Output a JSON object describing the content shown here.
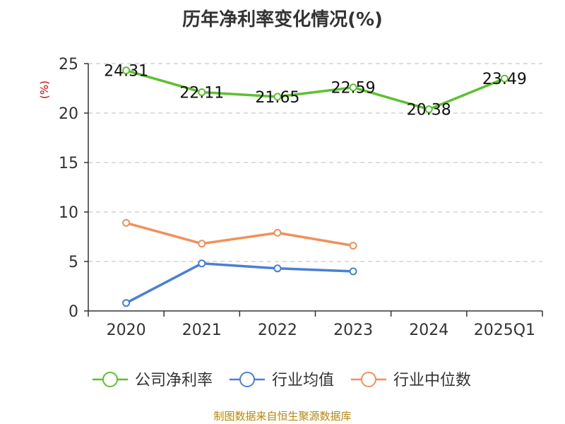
{
  "chart_data": {
    "type": "line",
    "title": "历年净利率变化情况(%)",
    "y_unit": "(%)",
    "categories": [
      "2020",
      "2021",
      "2022",
      "2023",
      "2024",
      "2025Q1"
    ],
    "ylim": [
      0,
      25
    ],
    "yticks": [
      0,
      5,
      10,
      15,
      20,
      25
    ],
    "grid": true,
    "legend_position": "bottom",
    "series": [
      {
        "name": "公司净利率",
        "color": "#5dc12e",
        "values": [
          24.31,
          22.11,
          21.65,
          22.59,
          20.38,
          23.49
        ],
        "labels": [
          "24.31",
          "22.11",
          "21.65",
          "22.59",
          "20.38",
          "23.49"
        ]
      },
      {
        "name": "行业均值",
        "color": "#4a7fd6",
        "values": [
          0.8,
          4.8,
          4.3,
          4.0,
          null,
          null
        ]
      },
      {
        "name": "行业中位数",
        "color": "#f0905a",
        "values": [
          8.9,
          6.8,
          7.9,
          6.6,
          null,
          null
        ]
      }
    ]
  },
  "source": "制图数据来自恒生聚源数据库"
}
